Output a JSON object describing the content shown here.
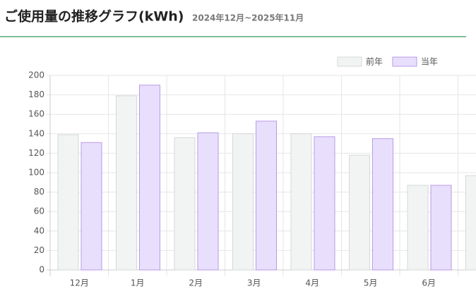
{
  "chart_data": {
    "type": "bar",
    "title": "ご使用量の推移グラフ(kWh)",
    "subtitle": "2024年12月~2025年11月",
    "categories": [
      "12月",
      "1月",
      "2月",
      "3月",
      "4月",
      "5月",
      "6月",
      null
    ],
    "series": [
      {
        "name": "前年",
        "color": "#f2f4f3",
        "border": "#d3d9d6",
        "values": [
          139,
          179,
          136,
          140,
          140,
          118,
          87,
          97
        ]
      },
      {
        "name": "当年",
        "color": "#e8dffd",
        "border": "#b99be6",
        "values": [
          131,
          190,
          141,
          153,
          137,
          135,
          87,
          null
        ]
      }
    ],
    "ylim": [
      0,
      200
    ],
    "yticks": [
      0,
      20,
      40,
      60,
      80,
      100,
      120,
      140,
      160,
      180,
      200
    ],
    "grid": true,
    "legend": "top-right"
  }
}
